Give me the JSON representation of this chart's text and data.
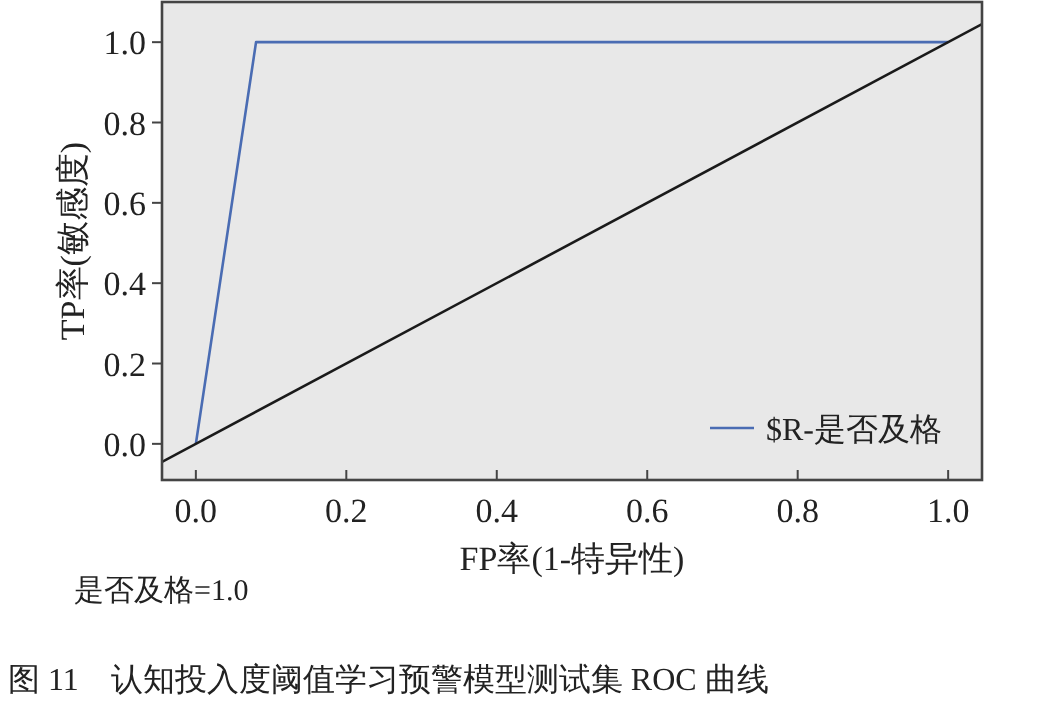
{
  "chart_data": {
    "type": "line",
    "xlabel": "FP率(1-特异性)",
    "ylabel": "TP率(敏感度)",
    "xlim": [
      -0.045,
      1.045
    ],
    "ylim": [
      -0.09,
      1.1
    ],
    "xticks": [
      {
        "value": 0,
        "label": "0.0"
      },
      {
        "value": 0.2,
        "label": "0.2"
      },
      {
        "value": 0.4,
        "label": "0.4"
      },
      {
        "value": 0.6,
        "label": "0.6"
      },
      {
        "value": 0.8,
        "label": "0.8"
      },
      {
        "value": 1,
        "label": "1.0"
      }
    ],
    "yticks": [
      {
        "value": 0,
        "label": "0.0"
      },
      {
        "value": 0.2,
        "label": "0.2"
      },
      {
        "value": 0.4,
        "label": "0.4"
      },
      {
        "value": 0.6,
        "label": "0.6"
      },
      {
        "value": 0.8,
        "label": "0.8"
      },
      {
        "value": 1,
        "label": "1.0"
      }
    ],
    "series": [
      {
        "name": "$R-是否及格",
        "color": "#4a6cb3",
        "x": [
          0,
          0.08,
          1
        ],
        "values": [
          0,
          1,
          1
        ]
      },
      {
        "color": "#1a1a1a",
        "x": [
          -0.045,
          1.045
        ],
        "values": [
          -0.045,
          1.045
        ]
      }
    ],
    "legend": "bottom right",
    "grid": false,
    "marker": "none",
    "line_style": "solid",
    "annotations": [
      "是否及格=1.0",
      "图 11　认知投入度阈值学习预警模型测试集 ROC 曲线"
    ]
  }
}
